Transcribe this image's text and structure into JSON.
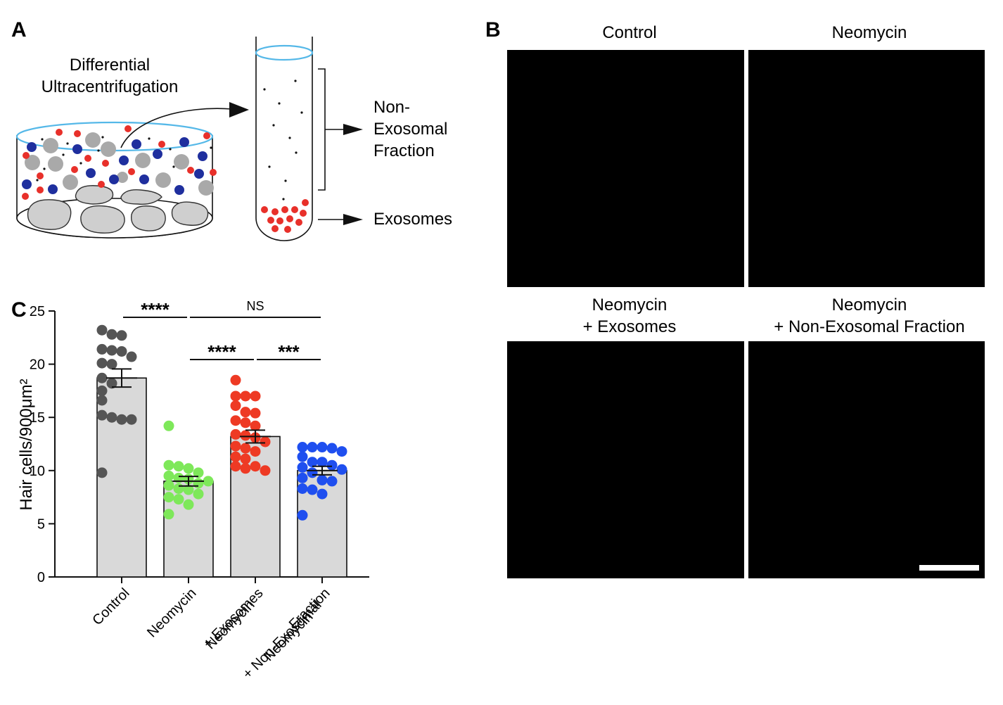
{
  "panel_a": {
    "letter": "A",
    "title_line1": "Differential",
    "title_line2": "Ultracentrifugation",
    "nonexo_line1": "Non-",
    "nonexo_line2": "Exosomal",
    "nonexo_line3": "Fraction",
    "exosomes_label": "Exosomes"
  },
  "panel_b": {
    "letter": "B",
    "images": [
      {
        "line1": "Control",
        "line2": ""
      },
      {
        "line1": "Neomycin",
        "line2": ""
      },
      {
        "line1": "Neomycin",
        "line2": "+ Exosomes"
      },
      {
        "line1": "Neomycin",
        "line2": "+ Non-Exosomal Fraction"
      }
    ]
  },
  "panel_c": {
    "letter": "C"
  },
  "colors": {
    "control": "#555555",
    "neomycin": "#7ee85a",
    "exosomes": "#ee3a24",
    "nonexosomal": "#1f4fef",
    "bar_fill": "#d9d9d9",
    "vesicle_red": "#e8302a",
    "vesicle_blue": "#1f2f9e",
    "cell_gray": "#a9a9a9",
    "meniscus": "#55b8e8"
  },
  "chart_data": {
    "type": "bar",
    "ylabel": "Hair cells/900μm²",
    "ylim": [
      0,
      25
    ],
    "yticks": [
      0,
      5,
      10,
      15,
      20,
      25
    ],
    "categories": [
      {
        "lines": [
          "Control"
        ]
      },
      {
        "lines": [
          "Neomycin"
        ]
      },
      {
        "lines": [
          "Neomycin",
          "+ Exosomes"
        ]
      },
      {
        "lines": [
          "Neomycin",
          "+ Non-Exosomal",
          "Fraction"
        ]
      }
    ],
    "series": [
      {
        "mean": 18.7,
        "sem": 0.85,
        "color_key": "control",
        "points": [
          22.8,
          23.2,
          22.7,
          21.2,
          21.3,
          21.4,
          20.7,
          20.1,
          20.0,
          18.7,
          18.2,
          17.5,
          16.6,
          15.2,
          14.8,
          15.0,
          14.8,
          9.8
        ]
      },
      {
        "mean": 9.0,
        "sem": 0.45,
        "color_key": "neomycin",
        "points": [
          14.2,
          10.5,
          10.4,
          10.2,
          9.8,
          9.5,
          9.3,
          9.2,
          9.0,
          8.8,
          8.6,
          8.3,
          8.2,
          7.8,
          7.5,
          7.3,
          6.8,
          5.9
        ]
      },
      {
        "mean": 13.2,
        "sem": 0.6,
        "color_key": "exosomes",
        "points": [
          18.5,
          17.0,
          17.0,
          17.0,
          16.1,
          15.5,
          15.4,
          14.7,
          14.5,
          14.2,
          13.4,
          13.3,
          13.1,
          12.7,
          12.3,
          12.1,
          11.8,
          11.3,
          11.1,
          10.4,
          10.4,
          10.2,
          10.0
        ]
      },
      {
        "mean": 10.0,
        "sem": 0.4,
        "color_key": "nonexosomal",
        "points": [
          12.2,
          12.2,
          12.2,
          12.1,
          11.8,
          11.3,
          10.8,
          10.8,
          10.5,
          10.3,
          10.1,
          9.8,
          9.3,
          9.1,
          9.0,
          8.3,
          8.2,
          7.8,
          5.8
        ]
      }
    ],
    "significance": [
      {
        "from": 0,
        "to": 1,
        "label": "****",
        "bold": true
      },
      {
        "from": 1,
        "to": 3,
        "label": "NS",
        "bold": false
      },
      {
        "from": 1,
        "to": 2,
        "label": "****",
        "bold": true
      },
      {
        "from": 2,
        "to": 3,
        "label": "***",
        "bold": true
      }
    ]
  }
}
